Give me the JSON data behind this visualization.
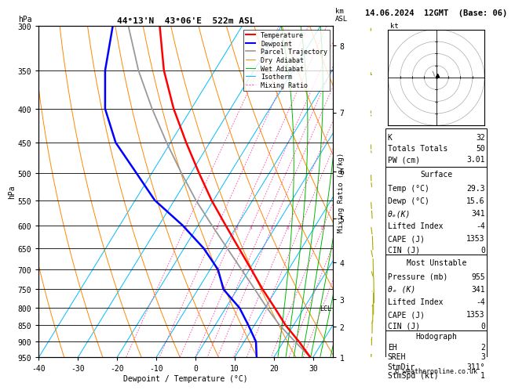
{
  "title_left": "44°13'N  43°06'E  522m ASL",
  "title_right": "14.06.2024  12GMT  (Base: 06)",
  "xlabel": "Dewpoint / Temperature (°C)",
  "ylabel_left": "hPa",
  "pressure_levels": [
    300,
    350,
    400,
    450,
    500,
    550,
    600,
    650,
    700,
    750,
    800,
    850,
    900,
    950
  ],
  "temp_range_min": -40,
  "temp_range_max": 35,
  "skew_factor": 45,
  "isotherm_color": "#00BBFF",
  "dry_adiabat_color": "#FF8800",
  "wet_adiabat_color": "#00BB00",
  "mixing_ratio_color": "#FF44AA",
  "temp_color": "#FF0000",
  "dewp_color": "#0000FF",
  "parcel_color": "#999999",
  "background_color": "#FFFFFF",
  "km_asl_ticks": [
    1,
    2,
    3,
    4,
    5,
    6,
    7,
    8
  ],
  "km_asl_pressures": [
    976,
    876,
    794,
    696,
    596,
    503,
    408,
    321
  ],
  "mixing_ratio_values": [
    1,
    2,
    3,
    4,
    5,
    6,
    8,
    10,
    15,
    20,
    25
  ],
  "mixing_ratio_label_pressure": 605,
  "lcl_pressure": 800,
  "temperature_profile_pressure": [
    950,
    900,
    850,
    800,
    750,
    700,
    650,
    600,
    550,
    500,
    450,
    400,
    350,
    300
  ],
  "temperature_profile_temp": [
    29.3,
    24.0,
    18.0,
    12.5,
    6.5,
    0.5,
    -6.0,
    -13.0,
    -20.5,
    -28.0,
    -36.0,
    -44.5,
    -53.0,
    -61.0
  ],
  "dewpoint_profile_pressure": [
    950,
    900,
    850,
    800,
    750,
    700,
    650,
    600,
    550,
    500,
    450,
    400,
    350,
    300
  ],
  "dewpoint_profile_dewp": [
    15.6,
    13.0,
    8.5,
    3.5,
    -3.5,
    -8.0,
    -15.0,
    -24.0,
    -35.0,
    -44.0,
    -54.0,
    -62.0,
    -68.0,
    -73.0
  ],
  "parcel_profile_pressure": [
    950,
    900,
    850,
    800,
    750,
    700,
    650,
    600,
    550,
    500,
    450,
    400,
    350,
    300
  ],
  "parcel_profile_temp": [
    29.3,
    23.0,
    16.5,
    10.5,
    4.5,
    -2.0,
    -9.0,
    -16.5,
    -24.5,
    -32.5,
    -41.0,
    -50.0,
    -59.5,
    -69.0
  ],
  "stats_K": 32,
  "stats_TT": 50,
  "stats_PW": "3.01",
  "stats_surf_temp": "29.3",
  "stats_surf_dewp": "15.6",
  "stats_surf_theta_e": 341,
  "stats_surf_li": -4,
  "stats_surf_cape": 1353,
  "stats_surf_cin": 0,
  "stats_mu_pressure": 955,
  "stats_mu_theta_e": 341,
  "stats_mu_li": -4,
  "stats_mu_cape": 1353,
  "stats_mu_cin": 0,
  "stats_eh": 2,
  "stats_sreh": 3,
  "stats_stm_dir": "311°",
  "stats_stm_spd": 1,
  "font_size": 7.0,
  "copyright": "© weatheronline.co.uk",
  "wind_barb_color": "#AAAA00",
  "wind_pressures": [
    950,
    900,
    850,
    800,
    750,
    700,
    650,
    600,
    550,
    500,
    450,
    400,
    350,
    300
  ],
  "wind_dirs": [
    311,
    300,
    290,
    280,
    260,
    250,
    240,
    230,
    215,
    200,
    190,
    185,
    180,
    175
  ],
  "wind_spds": [
    2,
    4,
    6,
    8,
    10,
    12,
    10,
    8,
    6,
    5,
    4,
    3,
    2,
    2
  ]
}
